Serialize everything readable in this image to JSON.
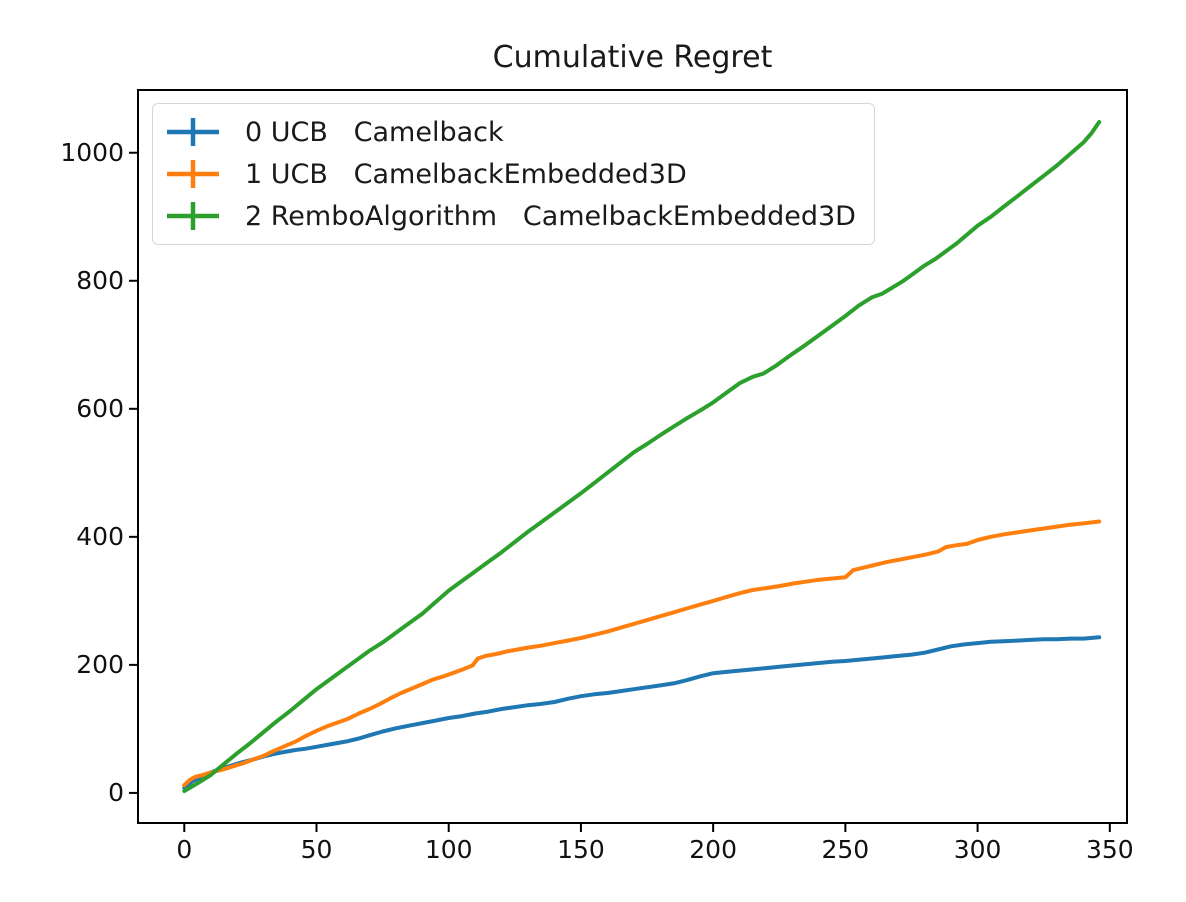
{
  "chart_data": {
    "type": "line",
    "title": "Cumulative Regret",
    "xlabel": "",
    "ylabel": "",
    "xlim": [
      -17.5,
      356.5
    ],
    "ylim": [
      -47,
      1098
    ],
    "x_ticks": [
      0,
      50,
      100,
      150,
      200,
      250,
      300,
      350
    ],
    "y_ticks": [
      0,
      200,
      400,
      600,
      800,
      1000
    ],
    "grid": false,
    "legend_position": "upper left",
    "marker_style": "errorbar-plus",
    "series": [
      {
        "name": "0 UCB   Camelback",
        "color": "#1f77b4",
        "points": [
          [
            0,
            8
          ],
          [
            3,
            18
          ],
          [
            6,
            24
          ],
          [
            10,
            32
          ],
          [
            14,
            38
          ],
          [
            18,
            43
          ],
          [
            22,
            48
          ],
          [
            26,
            52
          ],
          [
            30,
            57
          ],
          [
            34,
            61
          ],
          [
            38,
            64
          ],
          [
            42,
            67
          ],
          [
            46,
            69
          ],
          [
            50,
            72
          ],
          [
            54,
            75
          ],
          [
            58,
            78
          ],
          [
            62,
            81
          ],
          [
            66,
            85
          ],
          [
            70,
            90
          ],
          [
            75,
            96
          ],
          [
            80,
            101
          ],
          [
            85,
            105
          ],
          [
            90,
            109
          ],
          [
            95,
            113
          ],
          [
            100,
            117
          ],
          [
            105,
            120
          ],
          [
            110,
            124
          ],
          [
            115,
            127
          ],
          [
            120,
            131
          ],
          [
            125,
            134
          ],
          [
            130,
            137
          ],
          [
            135,
            139
          ],
          [
            140,
            142
          ],
          [
            145,
            147
          ],
          [
            150,
            151
          ],
          [
            155,
            154
          ],
          [
            160,
            156
          ],
          [
            165,
            159
          ],
          [
            170,
            162
          ],
          [
            175,
            165
          ],
          [
            180,
            168
          ],
          [
            185,
            171
          ],
          [
            190,
            176
          ],
          [
            195,
            182
          ],
          [
            200,
            187
          ],
          [
            205,
            189
          ],
          [
            210,
            191
          ],
          [
            215,
            193
          ],
          [
            220,
            195
          ],
          [
            225,
            197
          ],
          [
            230,
            199
          ],
          [
            235,
            201
          ],
          [
            240,
            203
          ],
          [
            245,
            205
          ],
          [
            250,
            206
          ],
          [
            255,
            208
          ],
          [
            260,
            210
          ],
          [
            265,
            212
          ],
          [
            270,
            214
          ],
          [
            275,
            216
          ],
          [
            280,
            219
          ],
          [
            285,
            224
          ],
          [
            290,
            229
          ],
          [
            295,
            232
          ],
          [
            300,
            234
          ],
          [
            305,
            236
          ],
          [
            310,
            237
          ],
          [
            315,
            238
          ],
          [
            320,
            239
          ],
          [
            325,
            240
          ],
          [
            330,
            240
          ],
          [
            335,
            241
          ],
          [
            340,
            241
          ],
          [
            346,
            243
          ]
        ]
      },
      {
        "name": "1 UCB   CamelbackEmbedded3D",
        "color": "#ff7f0e",
        "points": [
          [
            0,
            12
          ],
          [
            2,
            20
          ],
          [
            4,
            25
          ],
          [
            7,
            28
          ],
          [
            10,
            32
          ],
          [
            14,
            36
          ],
          [
            18,
            41
          ],
          [
            22,
            46
          ],
          [
            26,
            52
          ],
          [
            30,
            58
          ],
          [
            34,
            66
          ],
          [
            38,
            73
          ],
          [
            42,
            80
          ],
          [
            46,
            89
          ],
          [
            50,
            97
          ],
          [
            54,
            104
          ],
          [
            58,
            110
          ],
          [
            62,
            116
          ],
          [
            66,
            124
          ],
          [
            70,
            131
          ],
          [
            74,
            139
          ],
          [
            78,
            148
          ],
          [
            82,
            156
          ],
          [
            86,
            163
          ],
          [
            90,
            170
          ],
          [
            94,
            177
          ],
          [
            98,
            182
          ],
          [
            102,
            188
          ],
          [
            106,
            194
          ],
          [
            109,
            199
          ],
          [
            111,
            210
          ],
          [
            114,
            214
          ],
          [
            118,
            217
          ],
          [
            122,
            221
          ],
          [
            126,
            224
          ],
          [
            130,
            227
          ],
          [
            135,
            230
          ],
          [
            140,
            234
          ],
          [
            145,
            238
          ],
          [
            150,
            242
          ],
          [
            155,
            247
          ],
          [
            160,
            252
          ],
          [
            165,
            258
          ],
          [
            170,
            264
          ],
          [
            175,
            270
          ],
          [
            180,
            276
          ],
          [
            185,
            282
          ],
          [
            190,
            288
          ],
          [
            195,
            294
          ],
          [
            200,
            300
          ],
          [
            205,
            306
          ],
          [
            210,
            312
          ],
          [
            215,
            317
          ],
          [
            220,
            320
          ],
          [
            225,
            323
          ],
          [
            230,
            327
          ],
          [
            235,
            330
          ],
          [
            240,
            333
          ],
          [
            245,
            335
          ],
          [
            250,
            337
          ],
          [
            253,
            348
          ],
          [
            257,
            352
          ],
          [
            261,
            356
          ],
          [
            265,
            360
          ],
          [
            270,
            364
          ],
          [
            275,
            368
          ],
          [
            280,
            372
          ],
          [
            285,
            377
          ],
          [
            288,
            384
          ],
          [
            292,
            387
          ],
          [
            296,
            389
          ],
          [
            300,
            395
          ],
          [
            305,
            400
          ],
          [
            310,
            404
          ],
          [
            315,
            407
          ],
          [
            320,
            410
          ],
          [
            325,
            413
          ],
          [
            330,
            416
          ],
          [
            335,
            419
          ],
          [
            340,
            421
          ],
          [
            346,
            424
          ]
        ]
      },
      {
        "name": "2 RemboAlgorithm   CamelbackEmbedded3D",
        "color": "#2ca02c",
        "points": [
          [
            0,
            3
          ],
          [
            5,
            15
          ],
          [
            10,
            28
          ],
          [
            15,
            45
          ],
          [
            20,
            62
          ],
          [
            25,
            78
          ],
          [
            30,
            95
          ],
          [
            35,
            112
          ],
          [
            40,
            128
          ],
          [
            45,
            145
          ],
          [
            50,
            162
          ],
          [
            55,
            177
          ],
          [
            60,
            192
          ],
          [
            65,
            207
          ],
          [
            70,
            222
          ],
          [
            75,
            235
          ],
          [
            80,
            250
          ],
          [
            85,
            265
          ],
          [
            90,
            280
          ],
          [
            95,
            298
          ],
          [
            100,
            316
          ],
          [
            105,
            331
          ],
          [
            110,
            346
          ],
          [
            115,
            361
          ],
          [
            120,
            376
          ],
          [
            125,
            392
          ],
          [
            130,
            408
          ],
          [
            135,
            423
          ],
          [
            140,
            438
          ],
          [
            145,
            453
          ],
          [
            150,
            468
          ],
          [
            155,
            484
          ],
          [
            160,
            500
          ],
          [
            165,
            516
          ],
          [
            170,
            532
          ],
          [
            175,
            545
          ],
          [
            180,
            559
          ],
          [
            185,
            572
          ],
          [
            190,
            585
          ],
          [
            195,
            597
          ],
          [
            200,
            610
          ],
          [
            205,
            625
          ],
          [
            210,
            640
          ],
          [
            215,
            650
          ],
          [
            219,
            655
          ],
          [
            224,
            668
          ],
          [
            230,
            686
          ],
          [
            235,
            700
          ],
          [
            240,
            715
          ],
          [
            245,
            730
          ],
          [
            250,
            745
          ],
          [
            255,
            761
          ],
          [
            260,
            774
          ],
          [
            264,
            780
          ],
          [
            268,
            790
          ],
          [
            272,
            800
          ],
          [
            276,
            812
          ],
          [
            280,
            824
          ],
          [
            284,
            834
          ],
          [
            288,
            846
          ],
          [
            292,
            858
          ],
          [
            296,
            872
          ],
          [
            300,
            886
          ],
          [
            305,
            900
          ],
          [
            310,
            916
          ],
          [
            315,
            932
          ],
          [
            320,
            948
          ],
          [
            325,
            964
          ],
          [
            330,
            980
          ],
          [
            335,
            998
          ],
          [
            340,
            1016
          ],
          [
            343,
            1030
          ],
          [
            346,
            1048
          ]
        ]
      }
    ],
    "colors": {
      "spine": "#000000",
      "text": "#1a1a1a",
      "background": "#ffffff"
    }
  }
}
